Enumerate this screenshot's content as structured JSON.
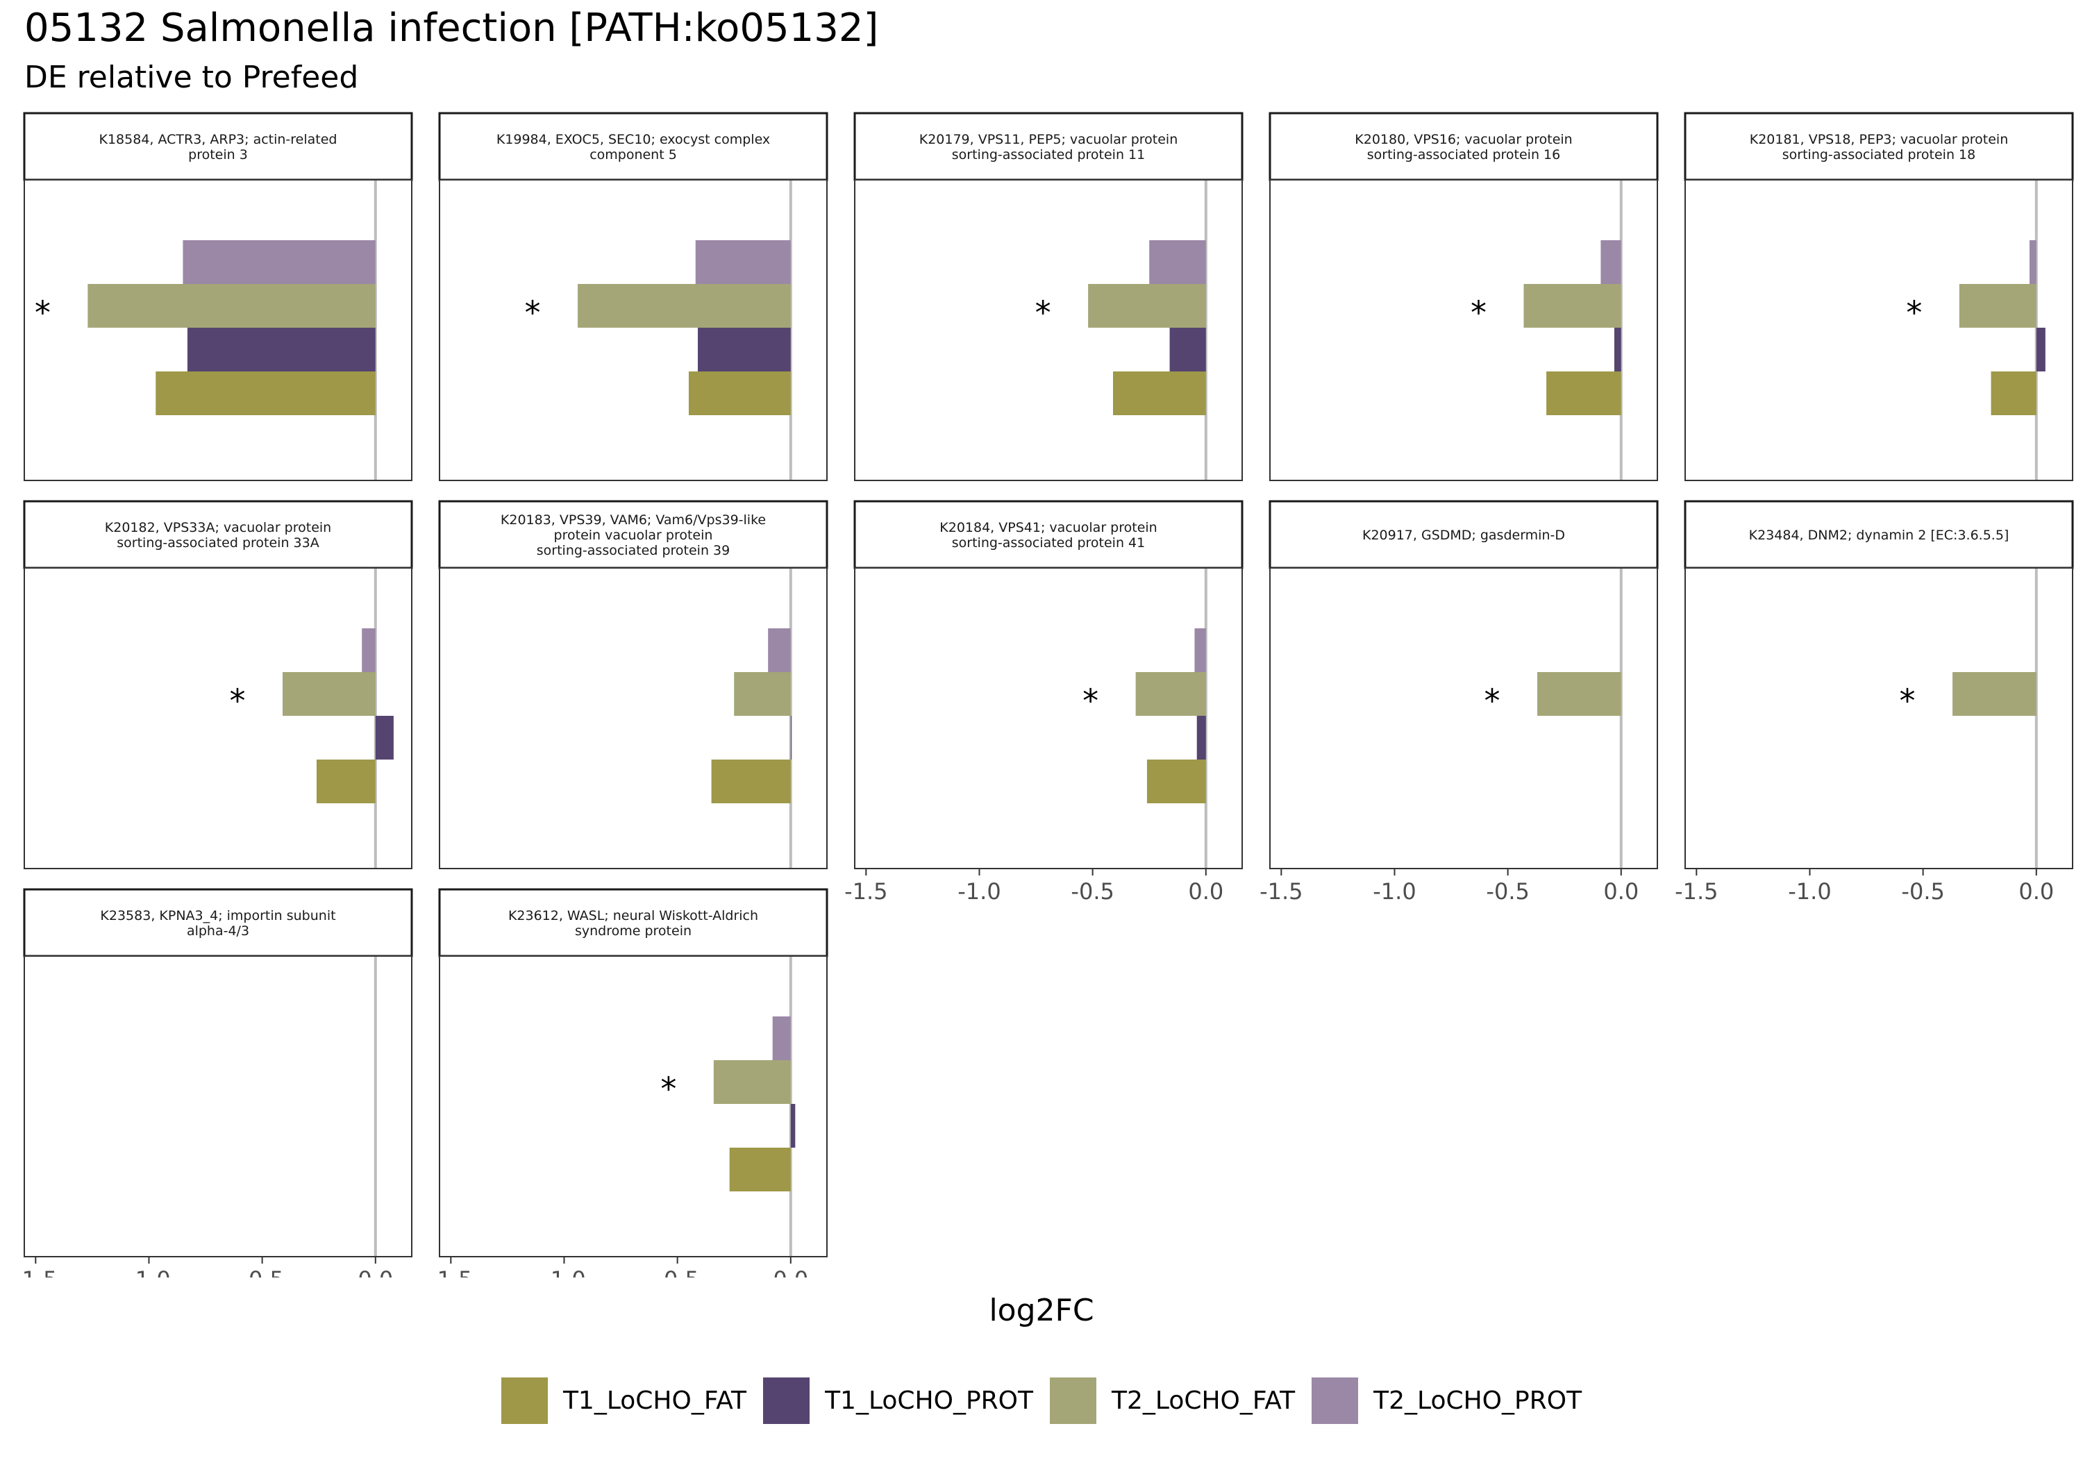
{
  "title": "05132 Salmonella infection [PATH:ko05132]",
  "subtitle": "DE relative to Prefeed",
  "chart_data": {
    "type": "bar",
    "orientation": "horizontal",
    "faceted": true,
    "xlabel": "log2FC",
    "ylabel": "",
    "xlim": [
      -1.55,
      0.16
    ],
    "x_ticks": [
      "-1.5",
      "-1.0",
      "-0.5",
      "0.0"
    ],
    "x_tick_values": [
      -1.5,
      -1.0,
      -0.5,
      0.0
    ],
    "significance_marker": "*",
    "series_colors": {
      "T1_LoCHO_FAT": "#9e9848",
      "T1_LoCHO_PROT": "#554470",
      "T2_LoCHO_FAT": "#a4a677",
      "T2_LoCHO_PROT": "#9b88a7"
    },
    "legend": [
      "T1_LoCHO_FAT",
      "T1_LoCHO_PROT",
      "T2_LoCHO_FAT",
      "T2_LoCHO_PROT"
    ],
    "legend_position": "bottom",
    "reference_line": 0,
    "panels": [
      {
        "strip": [
          "K18584, ACTR3, ARP3; actin-related",
          "protein 3"
        ],
        "values": {
          "T2_LoCHO_PROT": -0.85,
          "T2_LoCHO_FAT": -1.27,
          "T1_LoCHO_PROT": -0.83,
          "T1_LoCHO_FAT": -0.97
        },
        "significant": [
          "T2_LoCHO_FAT"
        ]
      },
      {
        "strip": [
          "K19984, EXOC5, SEC10; exocyst complex",
          "component 5"
        ],
        "values": {
          "T2_LoCHO_PROT": -0.42,
          "T2_LoCHO_FAT": -0.94,
          "T1_LoCHO_PROT": -0.41,
          "T1_LoCHO_FAT": -0.45
        },
        "significant": [
          "T2_LoCHO_FAT"
        ]
      },
      {
        "strip": [
          "K20179, VPS11, PEP5; vacuolar protein",
          "sorting-associated protein 11"
        ],
        "values": {
          "T2_LoCHO_PROT": -0.25,
          "T2_LoCHO_FAT": -0.52,
          "T1_LoCHO_PROT": -0.16,
          "T1_LoCHO_FAT": -0.41
        },
        "significant": [
          "T2_LoCHO_FAT"
        ]
      },
      {
        "strip": [
          "K20180, VPS16; vacuolar protein",
          "sorting-associated protein 16"
        ],
        "values": {
          "T2_LoCHO_PROT": -0.09,
          "T2_LoCHO_FAT": -0.43,
          "T1_LoCHO_PROT": -0.03,
          "T1_LoCHO_FAT": -0.33
        },
        "significant": [
          "T2_LoCHO_FAT"
        ]
      },
      {
        "strip": [
          "K20181, VPS18, PEP3; vacuolar protein",
          "sorting-associated protein 18"
        ],
        "values": {
          "T2_LoCHO_PROT": -0.03,
          "T2_LoCHO_FAT": -0.34,
          "T1_LoCHO_PROT": 0.04,
          "T1_LoCHO_FAT": -0.2
        },
        "significant": [
          "T2_LoCHO_FAT"
        ]
      },
      {
        "strip": [
          "K20182, VPS33A; vacuolar protein",
          "sorting-associated protein 33A"
        ],
        "values": {
          "T2_LoCHO_PROT": -0.06,
          "T2_LoCHO_FAT": -0.41,
          "T1_LoCHO_PROT": 0.08,
          "T1_LoCHO_FAT": -0.26
        },
        "significant": [
          "T2_LoCHO_FAT"
        ]
      },
      {
        "strip": [
          "K20183, VPS39, VAM6; Vam6/Vps39-like",
          "protein vacuolar protein",
          "sorting-associated protein 39"
        ],
        "values": {
          "T2_LoCHO_PROT": -0.1,
          "T2_LoCHO_FAT": -0.25,
          "T1_LoCHO_PROT": 0.0,
          "T1_LoCHO_FAT": -0.35
        },
        "significant": []
      },
      {
        "strip": [
          "K20184, VPS41; vacuolar protein",
          "sorting-associated protein 41"
        ],
        "values": {
          "T2_LoCHO_PROT": -0.05,
          "T2_LoCHO_FAT": -0.31,
          "T1_LoCHO_PROT": -0.04,
          "T1_LoCHO_FAT": -0.26
        },
        "significant": [
          "T2_LoCHO_FAT"
        ]
      },
      {
        "strip": [
          "K20917, GSDMD; gasdermin-D"
        ],
        "values": {
          "T2_LoCHO_FAT": -0.37
        },
        "significant": [
          "T2_LoCHO_FAT"
        ]
      },
      {
        "strip": [
          "K23484, DNM2; dynamin 2 [EC:3.6.5.5]"
        ],
        "values": {
          "T2_LoCHO_FAT": -0.37
        },
        "significant": [
          "T2_LoCHO_FAT"
        ]
      },
      {
        "strip": [
          "K23583, KPNA3_4; importin subunit",
          "alpha-4/3"
        ],
        "values": {},
        "significant": []
      },
      {
        "strip": [
          "K23612, WASL; neural Wiskott-Aldrich",
          "syndrome protein"
        ],
        "values": {
          "T2_LoCHO_PROT": -0.08,
          "T2_LoCHO_FAT": -0.34,
          "T1_LoCHO_PROT": 0.02,
          "T1_LoCHO_FAT": -0.27
        },
        "significant": [
          "T2_LoCHO_FAT"
        ]
      }
    ]
  }
}
